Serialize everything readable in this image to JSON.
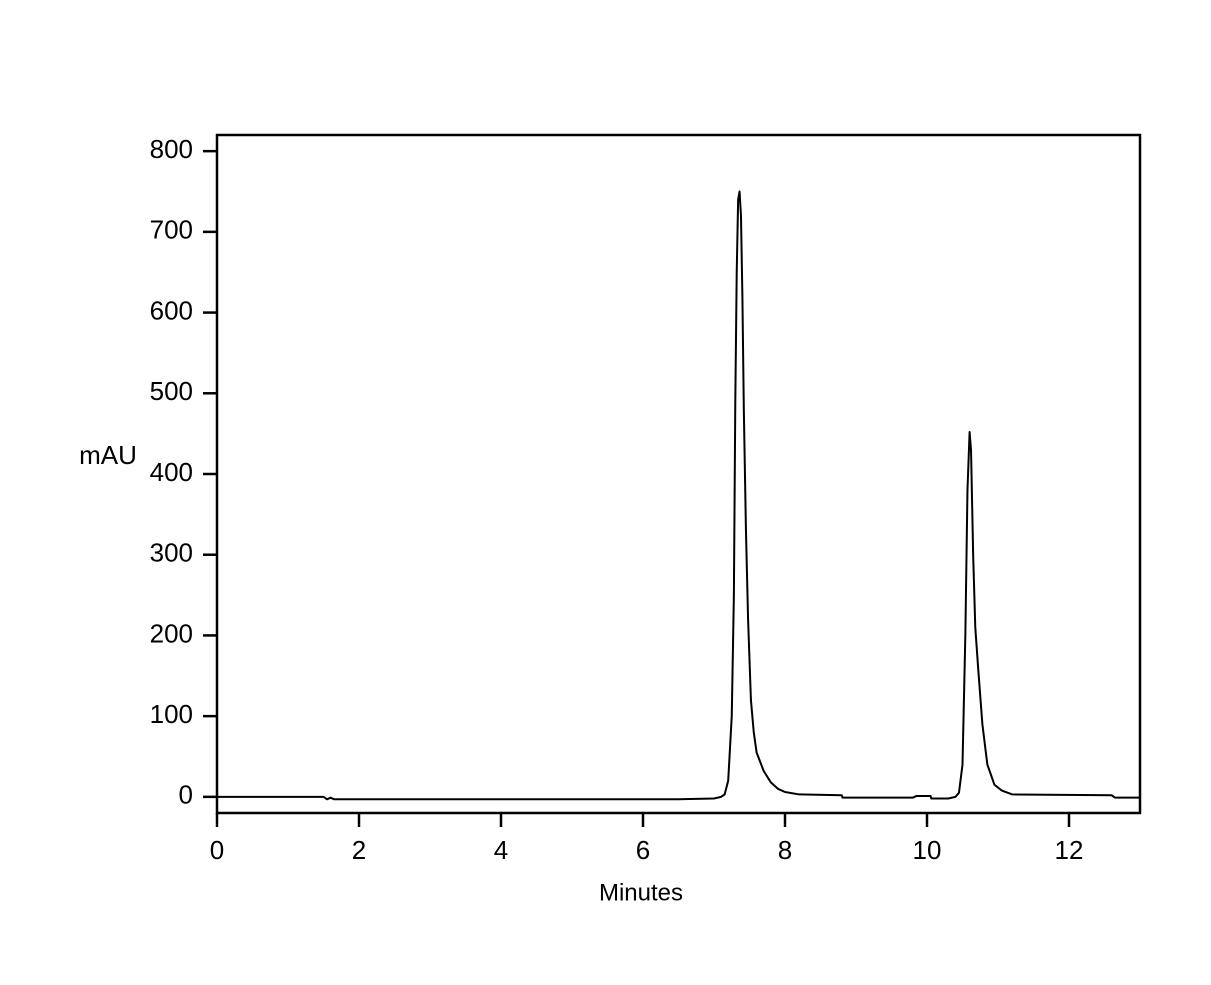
{
  "chart_data": {
    "type": "line",
    "x_label": "Minutes",
    "y_label": "mAU",
    "xlim": [
      0,
      13
    ],
    "ylim": [
      -20,
      820
    ],
    "xticks": [
      0,
      2,
      4,
      6,
      8,
      10,
      12
    ],
    "yticks": [
      0,
      100,
      200,
      300,
      400,
      500,
      600,
      700,
      800
    ],
    "series": [
      {
        "color": "#000000",
        "x": [
          0,
          1.5,
          1.55,
          1.6,
          1.65,
          3,
          6.5,
          7.0,
          7.1,
          7.15,
          7.2,
          7.25,
          7.28,
          7.3,
          7.32,
          7.34,
          7.36,
          7.38,
          7.4,
          7.42,
          7.45,
          7.48,
          7.52,
          7.56,
          7.6,
          7.7,
          7.8,
          7.9,
          8.0,
          8.2,
          8.8,
          8.81,
          9.8,
          9.85,
          10.05,
          10.06,
          10.3,
          10.4,
          10.45,
          10.5,
          10.54,
          10.57,
          10.6,
          10.62,
          10.65,
          10.68,
          10.72,
          10.78,
          10.85,
          10.95,
          11.05,
          11.2,
          12.6,
          12.65,
          13
        ],
        "values": [
          0,
          0,
          -3,
          -1,
          -3,
          -3,
          -3,
          -2,
          0,
          3,
          20,
          100,
          250,
          490,
          650,
          740,
          750,
          720,
          620,
          480,
          330,
          220,
          120,
          80,
          55,
          32,
          18,
          10,
          6,
          3,
          2,
          -1,
          -1,
          1,
          1,
          -2,
          -2,
          0,
          5,
          40,
          200,
          380,
          452,
          430,
          300,
          210,
          160,
          90,
          40,
          15,
          8,
          3,
          2,
          -1,
          -1
        ]
      }
    ]
  }
}
